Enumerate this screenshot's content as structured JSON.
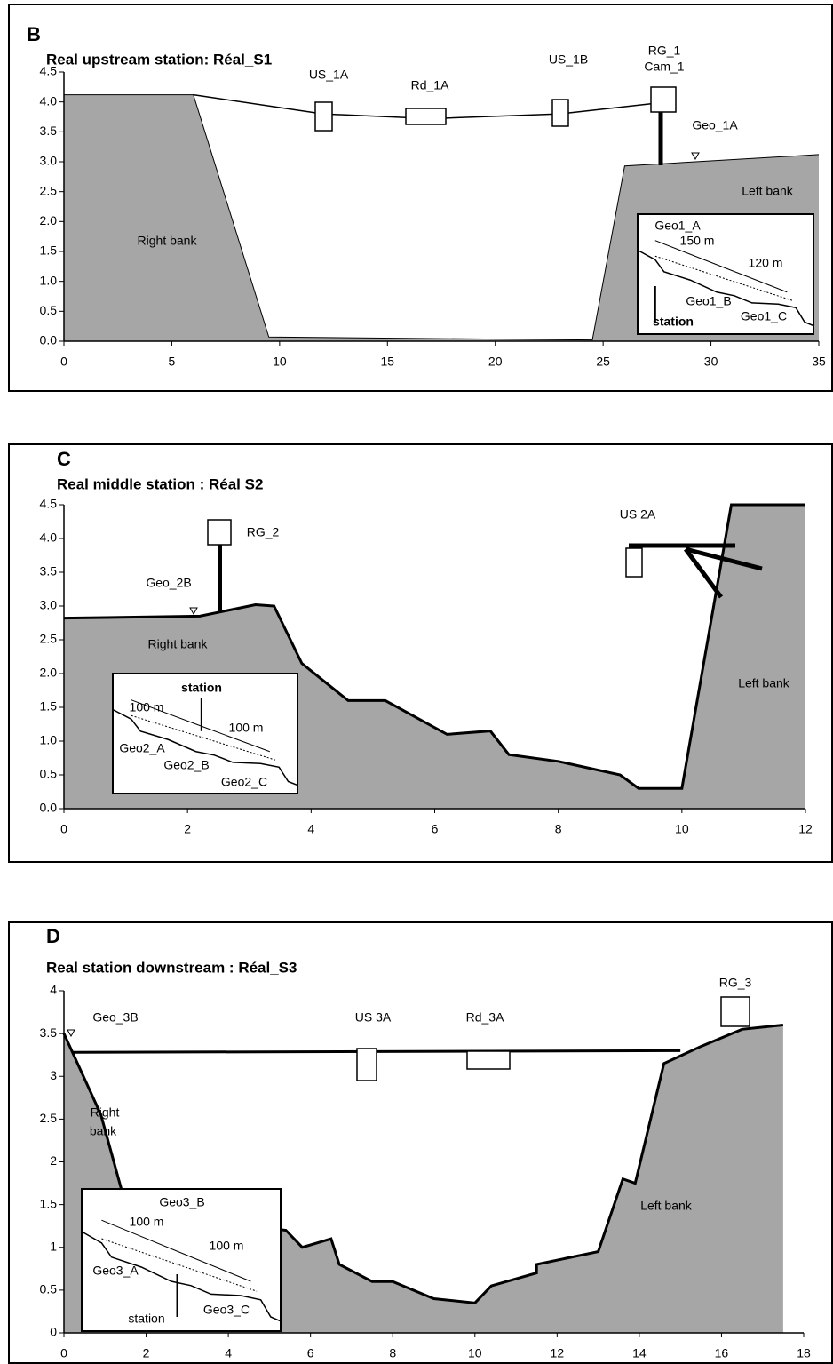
{
  "chart_data": [
    {
      "type": "area",
      "panel": "B",
      "title": "Real upstream station: Réal_S1",
      "xlim": [
        0,
        35
      ],
      "ylim": [
        0,
        4.5
      ],
      "xticks": [
        0,
        5,
        10,
        15,
        20,
        25,
        30,
        35
      ],
      "yticks": [
        {
          "value": 0,
          "label": "0.0"
        },
        0.5,
        {
          "value": 1,
          "label": "1.0"
        },
        1.5,
        {
          "value": 2,
          "label": "2.0"
        },
        2.5,
        {
          "value": 3,
          "label": "3.0"
        },
        3.5,
        {
          "value": 4,
          "label": "4.0"
        },
        4.5
      ],
      "series": [
        {
          "type": "area",
          "color": "#a6a6a6",
          "x": [
            0,
            6,
            9.5,
            24.5,
            26,
            35
          ],
          "values": [
            4.12,
            4.12,
            0.07,
            0.02,
            2.93,
            3.12
          ]
        },
        {
          "type": "line",
          "color": "#000000",
          "x": [
            6,
            12,
            17,
            23,
            27.5
          ],
          "values": [
            4.12,
            3.8,
            3.72,
            3.8,
            3.98
          ]
        }
      ],
      "annotations": [
        "US_1A",
        "Rd_1A",
        "US_1B",
        "RG_1",
        "Cam_1",
        "Geo_1A",
        "Left bank",
        "Right bank"
      ],
      "inset_labels": [
        "Geo1_A",
        "150 m",
        "120 m",
        "Geo1_B",
        "Geo1_C",
        "station"
      ]
    },
    {
      "type": "area",
      "panel": "C",
      "title": "Real middle station : Réal  S2",
      "xlim": [
        0,
        12
      ],
      "ylim": [
        0,
        4.5
      ],
      "xticks": [
        0,
        2,
        4,
        6,
        8,
        10,
        12
      ],
      "yticks": [
        {
          "value": 0,
          "label": "0.0"
        },
        0.5,
        {
          "value": 1,
          "label": "1.0"
        },
        1.5,
        {
          "value": 2,
          "label": "2.0"
        },
        2.5,
        {
          "value": 3,
          "label": "3.0"
        },
        3.5,
        {
          "value": 4,
          "label": "4.0"
        },
        4.5
      ],
      "series": [
        {
          "type": "area",
          "color": "#a6a6a6",
          "x": [
            0,
            2.2,
            3.1,
            3.4,
            3.85,
            4.6,
            5.2,
            6.2,
            6.9,
            7.2,
            8,
            9,
            9.3,
            10,
            10.8,
            12
          ],
          "values": [
            2.82,
            2.85,
            3.02,
            3.0,
            2.15,
            1.6,
            1.6,
            1.1,
            1.15,
            0.8,
            0.7,
            0.5,
            0.3,
            0.3,
            4.5,
            4.5
          ]
        },
        {
          "type": "line",
          "color": "#000000",
          "x": [
            9.2,
            10.8
          ],
          "values": [
            3.9,
            3.9
          ]
        }
      ],
      "annotations": [
        "RG_2",
        "Geo_2B",
        "US 2A",
        "Right bank",
        "Left bank"
      ],
      "inset_labels": [
        "station",
        "100 m",
        "100 m",
        "Geo2_A",
        "Geo2_B",
        "Geo2_C"
      ]
    },
    {
      "type": "area",
      "panel": "D",
      "title": "Real station downstream : Réal_S3",
      "xlim": [
        0,
        18
      ],
      "ylim": [
        0,
        4
      ],
      "xticks": [
        0,
        2,
        4,
        6,
        8,
        10,
        12,
        14,
        16,
        18
      ],
      "yticks": [
        0,
        0.5,
        1,
        1.5,
        2,
        2.5,
        3,
        3.5,
        4
      ],
      "series": [
        {
          "type": "area",
          "color": "#a6a6a6",
          "x": [
            0,
            0.9,
            1.5,
            2.5,
            3,
            4.5,
            5.4,
            5.8,
            6.5,
            6.7,
            7.5,
            8,
            9,
            10,
            10.4,
            11.5,
            11.5,
            13,
            13.6,
            13.9,
            14.6,
            15.5,
            16.5,
            17.5
          ],
          "values": [
            3.5,
            2.55,
            1.5,
            1.3,
            1.2,
            1.25,
            1.2,
            1.0,
            1.1,
            0.8,
            0.6,
            0.6,
            0.4,
            0.35,
            0.55,
            0.7,
            0.8,
            0.95,
            1.8,
            1.75,
            3.15,
            3.35,
            3.55,
            3.6
          ]
        },
        {
          "type": "line",
          "color": "#000000",
          "x": [
            0.2,
            15
          ],
          "values": [
            3.28,
            3.3
          ]
        }
      ],
      "annotations": [
        "RG_3",
        "Geo_3B",
        "US 3A",
        "Rd_3A",
        "Right",
        "bank",
        "Left bank"
      ],
      "inset_labels": [
        "Geo3_B",
        "100 m",
        "100 m",
        "Geo3_A",
        "Geo3_C",
        "station"
      ]
    }
  ]
}
